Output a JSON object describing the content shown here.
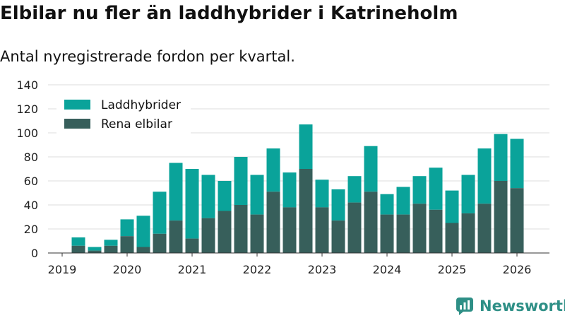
{
  "header": {
    "title": "Elbilar nu fler än laddhybrider i Katrineholm",
    "subtitle": "Antal nyregistrerade fordon per kvartal."
  },
  "brand": {
    "name": "Newsworthy",
    "icon": "newsworthy-logo-icon"
  },
  "colors": {
    "hybrid": "#0aa39a",
    "electric": "#375f5b",
    "grid": "#dddddd"
  },
  "chart_data": {
    "type": "bar",
    "stacked": true,
    "title": "Elbilar nu fler än laddhybrider i Katrineholm",
    "subtitle": "Antal nyregistrerade fordon per kvartal.",
    "xlabel": "",
    "ylabel": "",
    "ylim": [
      0,
      140
    ],
    "yticks": [
      0,
      20,
      40,
      60,
      80,
      100,
      120,
      140
    ],
    "xticks": [
      "2019",
      "2020",
      "2021",
      "2022",
      "2023",
      "2024",
      "2025",
      "2026"
    ],
    "grid": "horizontal",
    "legend": "top-left",
    "categories": [
      "2019Q2",
      "2019Q3",
      "2019Q4",
      "2020Q1",
      "2020Q2",
      "2020Q3",
      "2020Q4",
      "2021Q1",
      "2021Q2",
      "2021Q3",
      "2021Q4",
      "2022Q1",
      "2022Q2",
      "2022Q3",
      "2022Q4",
      "2023Q1",
      "2023Q2",
      "2023Q3",
      "2023Q4",
      "2024Q1",
      "2024Q2",
      "2024Q3",
      "2024Q4",
      "2025Q1",
      "2025Q2",
      "2025Q3",
      "2025Q4",
      "2026Q1"
    ],
    "series": [
      {
        "name": "Rena elbilar",
        "values": [
          6,
          2,
          6,
          14,
          5,
          16,
          27,
          12,
          29,
          35,
          40,
          32,
          51,
          38,
          70,
          38,
          27,
          42,
          51,
          32,
          32,
          41,
          36,
          25,
          33,
          41,
          60,
          54
        ]
      },
      {
        "name": "Laddhybrider",
        "values": [
          7,
          3,
          5,
          14,
          26,
          35,
          48,
          58,
          36,
          25,
          40,
          33,
          36,
          29,
          37,
          23,
          26,
          22,
          38,
          17,
          23,
          23,
          35,
          27,
          32,
          46,
          39,
          41
        ]
      }
    ]
  }
}
